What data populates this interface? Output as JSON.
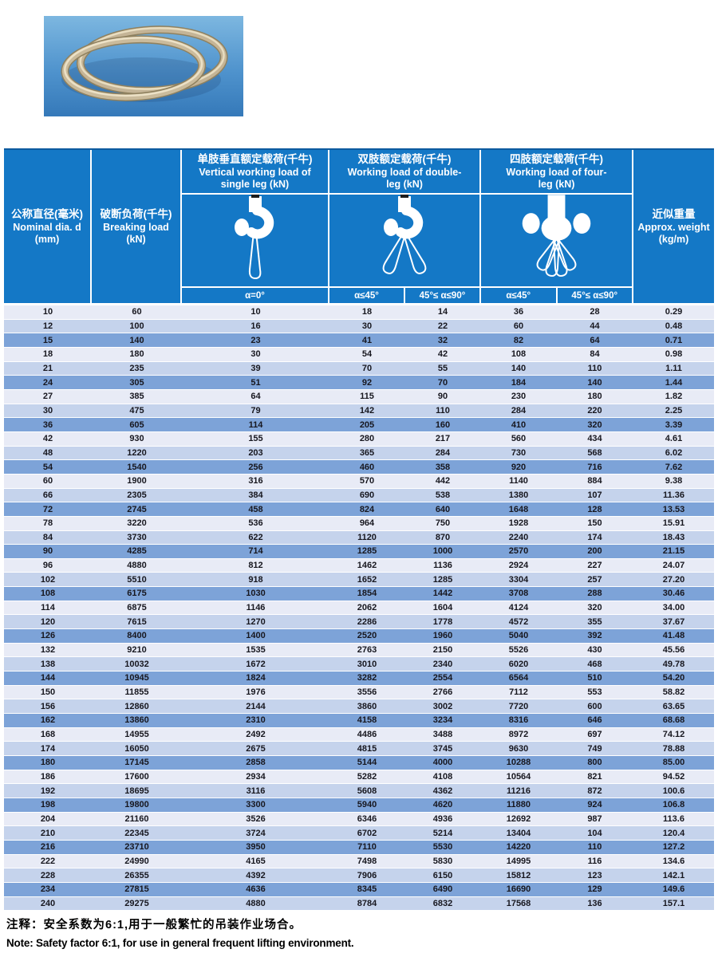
{
  "colors": {
    "header_blue": "#1478c6",
    "header_top_line": "#0d5a9e",
    "row_light": "#e8ebf6",
    "row_mid": "#c5d3ec",
    "row_dark": "#7da3d8",
    "data_text": "#17171f",
    "photo_bg_top": "#7db7e0",
    "photo_bg_bottom": "#3579b9",
    "rope_tan": "#c4b496"
  },
  "header": {
    "nominal_dia": {
      "zh": "公称直径(毫米)",
      "en": "Nominal dia. d",
      "unit": "(mm)"
    },
    "breaking_load": {
      "zh": "破断负荷(千牛)",
      "en": "Breaking load",
      "unit": "(kN)"
    },
    "single_leg": {
      "zh": "单肢垂直额定载荷(千牛)",
      "en1": "Vertical working load of",
      "en2": "single leg (kN)",
      "alpha": "α=0°"
    },
    "double_leg": {
      "zh": "双肢额定载荷(千牛)",
      "en1": "Working load of double-",
      "en2": "leg (kN)",
      "alpha1": "α≤45°",
      "alpha2": "45°≤ α≤90°"
    },
    "four_leg": {
      "zh": "四肢额定载荷(千牛)",
      "en1": "Working load of four-",
      "en2": "leg (kN)",
      "alpha1": "α≤45°",
      "alpha2": "45°≤ α≤90°"
    },
    "approx_weight": {
      "zh": "近似重量",
      "en": "Approx. weight",
      "unit": "(kg/m)"
    }
  },
  "table": {
    "rows": [
      [
        "10",
        "60",
        "10",
        "18",
        "14",
        "36",
        "28",
        "0.29"
      ],
      [
        "12",
        "100",
        "16",
        "30",
        "22",
        "60",
        "44",
        "0.48"
      ],
      [
        "15",
        "140",
        "23",
        "41",
        "32",
        "82",
        "64",
        "0.71"
      ],
      [
        "18",
        "180",
        "30",
        "54",
        "42",
        "108",
        "84",
        "0.98"
      ],
      [
        "21",
        "235",
        "39",
        "70",
        "55",
        "140",
        "110",
        "1.11"
      ],
      [
        "24",
        "305",
        "51",
        "92",
        "70",
        "184",
        "140",
        "1.44"
      ],
      [
        "27",
        "385",
        "64",
        "115",
        "90",
        "230",
        "180",
        "1.82"
      ],
      [
        "30",
        "475",
        "79",
        "142",
        "110",
        "284",
        "220",
        "2.25"
      ],
      [
        "36",
        "605",
        "114",
        "205",
        "160",
        "410",
        "320",
        "3.39"
      ],
      [
        "42",
        "930",
        "155",
        "280",
        "217",
        "560",
        "434",
        "4.61"
      ],
      [
        "48",
        "1220",
        "203",
        "365",
        "284",
        "730",
        "568",
        "6.02"
      ],
      [
        "54",
        "1540",
        "256",
        "460",
        "358",
        "920",
        "716",
        "7.62"
      ],
      [
        "60",
        "1900",
        "316",
        "570",
        "442",
        "1140",
        "884",
        "9.38"
      ],
      [
        "66",
        "2305",
        "384",
        "690",
        "538",
        "1380",
        "107",
        "11.36"
      ],
      [
        "72",
        "2745",
        "458",
        "824",
        "640",
        "1648",
        "128",
        "13.53"
      ],
      [
        "78",
        "3220",
        "536",
        "964",
        "750",
        "1928",
        "150",
        "15.91"
      ],
      [
        "84",
        "3730",
        "622",
        "1120",
        "870",
        "2240",
        "174",
        "18.43"
      ],
      [
        "90",
        "4285",
        "714",
        "1285",
        "1000",
        "2570",
        "200",
        "21.15"
      ],
      [
        "96",
        "4880",
        "812",
        "1462",
        "1136",
        "2924",
        "227",
        "24.07"
      ],
      [
        "102",
        "5510",
        "918",
        "1652",
        "1285",
        "3304",
        "257",
        "27.20"
      ],
      [
        "108",
        "6175",
        "1030",
        "1854",
        "1442",
        "3708",
        "288",
        "30.46"
      ],
      [
        "114",
        "6875",
        "1146",
        "2062",
        "1604",
        "4124",
        "320",
        "34.00"
      ],
      [
        "120",
        "7615",
        "1270",
        "2286",
        "1778",
        "4572",
        "355",
        "37.67"
      ],
      [
        "126",
        "8400",
        "1400",
        "2520",
        "1960",
        "5040",
        "392",
        "41.48"
      ],
      [
        "132",
        "9210",
        "1535",
        "2763",
        "2150",
        "5526",
        "430",
        "45.56"
      ],
      [
        "138",
        "10032",
        "1672",
        "3010",
        "2340",
        "6020",
        "468",
        "49.78"
      ],
      [
        "144",
        "10945",
        "1824",
        "3282",
        "2554",
        "6564",
        "510",
        "54.20"
      ],
      [
        "150",
        "11855",
        "1976",
        "3556",
        "2766",
        "7112",
        "553",
        "58.82"
      ],
      [
        "156",
        "12860",
        "2144",
        "3860",
        "3002",
        "7720",
        "600",
        "63.65"
      ],
      [
        "162",
        "13860",
        "2310",
        "4158",
        "3234",
        "8316",
        "646",
        "68.68"
      ],
      [
        "168",
        "14955",
        "2492",
        "4486",
        "3488",
        "8972",
        "697",
        "74.12"
      ],
      [
        "174",
        "16050",
        "2675",
        "4815",
        "3745",
        "9630",
        "749",
        "78.88"
      ],
      [
        "180",
        "17145",
        "2858",
        "5144",
        "4000",
        "10288",
        "800",
        "85.00"
      ],
      [
        "186",
        "17600",
        "2934",
        "5282",
        "4108",
        "10564",
        "821",
        "94.52"
      ],
      [
        "192",
        "18695",
        "3116",
        "5608",
        "4362",
        "11216",
        "872",
        "100.6"
      ],
      [
        "198",
        "19800",
        "3300",
        "5940",
        "4620",
        "11880",
        "924",
        "106.8"
      ],
      [
        "204",
        "21160",
        "3526",
        "6346",
        "4936",
        "12692",
        "987",
        "113.6"
      ],
      [
        "210",
        "22345",
        "3724",
        "6702",
        "5214",
        "13404",
        "104",
        "120.4"
      ],
      [
        "216",
        "23710",
        "3950",
        "7110",
        "5530",
        "14220",
        "110",
        "127.2"
      ],
      [
        "222",
        "24990",
        "4165",
        "7498",
        "5830",
        "14995",
        "116",
        "134.6"
      ],
      [
        "228",
        "26355",
        "4392",
        "7906",
        "6150",
        "15812",
        "123",
        "142.1"
      ],
      [
        "234",
        "27815",
        "4636",
        "8345",
        "6490",
        "16690",
        "129",
        "149.6"
      ],
      [
        "240",
        "29275",
        "4880",
        "8784",
        "6832",
        "17568",
        "136",
        "157.1"
      ]
    ],
    "row_stripes": [
      "a",
      "b",
      "c",
      "a",
      "b",
      "c",
      "a",
      "b",
      "c",
      "a",
      "b",
      "c",
      "a",
      "b",
      "c",
      "a",
      "b",
      "c",
      "a",
      "b",
      "c",
      "a",
      "b",
      "c",
      "a",
      "b",
      "c",
      "a",
      "b",
      "c",
      "a",
      "b",
      "c",
      "a",
      "b",
      "c",
      "a",
      "b",
      "c",
      "a",
      "b",
      "c",
      "b"
    ]
  },
  "notes": {
    "zh": "注释：安全系数为6:1,用于一般繁忙的吊装作业场合。",
    "en": "Note: Safety factor 6:1, for use in general frequent lifting environment."
  }
}
